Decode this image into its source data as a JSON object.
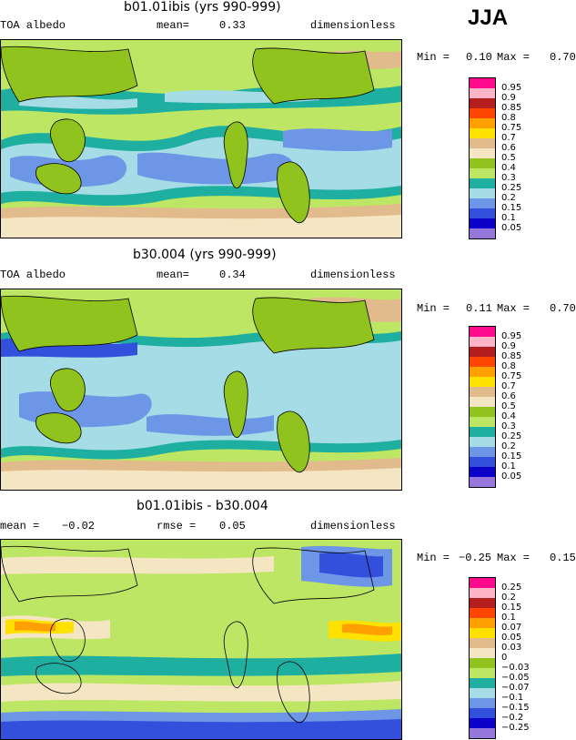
{
  "season": "JJA",
  "panels": [
    {
      "title": "b01.01ibis (yrs 990-999)",
      "left_label": "TOA albedo",
      "mid_label": "mean=",
      "mid_value": "0.33",
      "units": "dimensionless",
      "min_label": "Min =",
      "min_value": "0.10",
      "max_label": "Max =",
      "max_value": "0.70",
      "legend": [
        "0.95",
        "0.9",
        "0.85",
        "0.8",
        "0.75",
        "0.7",
        "0.6",
        "0.5",
        "0.4",
        "0.3",
        "0.25",
        "0.2",
        "0.15",
        "0.1",
        "0.05"
      ]
    },
    {
      "title": "b30.004 (yrs 990-999)",
      "left_label": "TOA albedo",
      "mid_label": "mean=",
      "mid_value": "0.34",
      "units": "dimensionless",
      "min_label": "Min =",
      "min_value": "0.11",
      "max_label": "Max =",
      "max_value": "0.70",
      "legend": [
        "0.95",
        "0.9",
        "0.85",
        "0.8",
        "0.75",
        "0.7",
        "0.6",
        "0.5",
        "0.4",
        "0.3",
        "0.25",
        "0.2",
        "0.15",
        "0.1",
        "0.05"
      ]
    },
    {
      "title": "b01.01ibis - b30.004",
      "left_label": "mean =",
      "left_value": "−0.02",
      "mid_label": "rmse =",
      "mid_value": "0.05",
      "units": "dimensionless",
      "min_label": "Min =",
      "min_value": "−0.25",
      "max_label": "Max =",
      "max_value": "0.15",
      "legend": [
        "0.25",
        "0.2",
        "0.15",
        "0.1",
        "0.07",
        "0.05",
        "0.03",
        "0",
        "−0.03",
        "−0.05",
        "−0.07",
        "−0.1",
        "−0.15",
        "−0.2",
        "−0.25"
      ]
    }
  ],
  "colors": {
    "albedo_scale": [
      "#ff0a8c",
      "#ffb4c8",
      "#b41e1e",
      "#ff4600",
      "#ffa000",
      "#ffe100",
      "#e1bb8c",
      "#f5e6c3",
      "#91c31e",
      "#bde664",
      "#1eafa0",
      "#a6dce6",
      "#6e96e6",
      "#3250dc",
      "#0a00c8",
      "#9678dc"
    ],
    "diff_scale": [
      "#ff0a8c",
      "#ffb4c8",
      "#b41e1e",
      "#ff4600",
      "#ffa000",
      "#ffe100",
      "#e1bb8c",
      "#f5e6c3",
      "#91c31e",
      "#bde664",
      "#1eafa0",
      "#a6dce6",
      "#6e96e6",
      "#3250dc",
      "#0a00c8",
      "#9678dc"
    ]
  }
}
